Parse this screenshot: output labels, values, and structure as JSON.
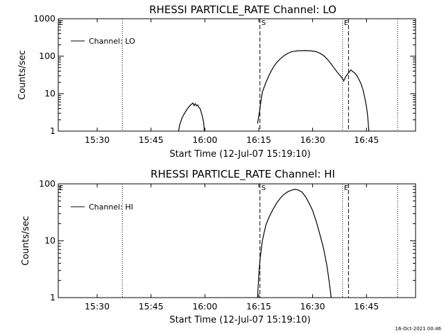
{
  "page": {
    "timestamp": "16-Oct-2021 00:46"
  },
  "chart_data": [
    {
      "type": "line",
      "title": "RHESSI PARTICLE_RATE Channel: LO",
      "xlabel": "Start Time (12-Jul-07 15:19:10)",
      "ylabel": "Counts/sec",
      "yscale": "log",
      "ylim": [
        1,
        1000
      ],
      "xlim": [
        "15:19:10",
        "16:58:40"
      ],
      "xtick_times": [
        "15:30",
        "15:45",
        "16:00",
        "16:15",
        "16:30",
        "16:45"
      ],
      "ytick_values": [
        1,
        10,
        100,
        1000
      ],
      "ytick_labels": [
        "1",
        "10",
        "100",
        "1000"
      ],
      "legend": {
        "position": "top-left",
        "entries": [
          "Channel: LO"
        ]
      },
      "grid": false,
      "markers": [
        {
          "label": "E",
          "style": "dotted",
          "times": [
            "15:37:00",
            "16:53:40"
          ]
        },
        {
          "label": "S",
          "style": "dashed",
          "times": [
            "16:15:20",
            "16:40:00"
          ]
        },
        {
          "label": "E",
          "style": "dotted",
          "times": [
            "16:38:20"
          ]
        }
      ],
      "series": [
        {
          "name": "Channel: LO",
          "segments": [
            [
              [
                "15:52:40",
                1
              ],
              [
                "15:53:00",
                1.5
              ],
              [
                "15:53:40",
                2.3
              ],
              [
                "15:54:30",
                3.2
              ],
              [
                "15:55:20",
                4.2
              ],
              [
                "15:56:00",
                5
              ],
              [
                "15:56:40",
                5.6
              ],
              [
                "15:57:00",
                4.8
              ],
              [
                "15:57:20",
                5.4
              ],
              [
                "15:57:40",
                4.7
              ],
              [
                "15:58:00",
                5
              ],
              [
                "15:58:20",
                4.3
              ],
              [
                "15:58:40",
                4
              ],
              [
                "15:59:10",
                2.8
              ],
              [
                "15:59:40",
                1.7
              ],
              [
                "15:59:50",
                1
              ]
            ],
            [
              [
                "16:14:40",
                1.6
              ],
              [
                "16:15:00",
                2.5
              ],
              [
                "16:15:20",
                4
              ],
              [
                "16:15:40",
                7
              ],
              [
                "16:16:00",
                11
              ],
              [
                "16:16:30",
                15
              ],
              [
                "16:17:00",
                20
              ],
              [
                "16:18:00",
                33
              ],
              [
                "16:19:00",
                50
              ],
              [
                "16:20:00",
                68
              ],
              [
                "16:21:00",
                85
              ],
              [
                "16:22:00",
                102
              ],
              [
                "16:23:00",
                118
              ],
              [
                "16:24:00",
                130
              ],
              [
                "16:25:00",
                136
              ],
              [
                "16:26:00",
                140
              ],
              [
                "16:27:00",
                140
              ],
              [
                "16:28:00",
                141
              ],
              [
                "16:29:00",
                140
              ],
              [
                "16:30:00",
                137
              ],
              [
                "16:31:00",
                132
              ],
              [
                "16:32:00",
                120
              ],
              [
                "16:33:00",
                105
              ],
              [
                "16:34:00",
                85
              ],
              [
                "16:35:00",
                65
              ],
              [
                "16:36:00",
                48
              ],
              [
                "16:37:00",
                36
              ],
              [
                "16:38:00",
                28
              ],
              [
                "16:38:40",
                22
              ],
              [
                "16:39:10",
                28
              ],
              [
                "16:39:40",
                33
              ],
              [
                "16:40:00",
                36
              ],
              [
                "16:40:40",
                43
              ],
              [
                "16:41:00",
                40
              ],
              [
                "16:41:40",
                36
              ],
              [
                "16:42:20",
                30
              ],
              [
                "16:43:00",
                23
              ],
              [
                "16:43:30",
                18
              ],
              [
                "16:44:00",
                13
              ],
              [
                "16:44:30",
                8
              ],
              [
                "16:45:00",
                4.5
              ],
              [
                "16:45:20",
                2.5
              ],
              [
                "16:45:40",
                1
              ]
            ]
          ]
        }
      ]
    },
    {
      "type": "line",
      "title": "RHESSI PARTICLE_RATE Channel: HI",
      "xlabel": "Start Time (12-Jul-07 15:19:10)",
      "ylabel": "Counts/sec",
      "yscale": "log",
      "ylim": [
        1,
        100
      ],
      "xlim": [
        "15:19:10",
        "16:58:40"
      ],
      "xtick_times": [
        "15:30",
        "15:45",
        "16:00",
        "16:15",
        "16:30",
        "16:45"
      ],
      "ytick_values": [
        1,
        10,
        100
      ],
      "ytick_labels": [
        "1",
        "10",
        "100"
      ],
      "legend": {
        "position": "top-left",
        "entries": [
          "Channel: HI"
        ]
      },
      "grid": false,
      "markers": [
        {
          "label": "E",
          "style": "dotted",
          "times": [
            "15:37:00",
            "16:53:40"
          ]
        },
        {
          "label": "S",
          "style": "dashed",
          "times": [
            "16:15:20",
            "16:40:00"
          ]
        },
        {
          "label": "E",
          "style": "dotted",
          "times": [
            "16:38:20"
          ]
        }
      ],
      "series": [
        {
          "name": "Channel: HI",
          "segments": [
            [
              [
                "16:14:40",
                1
              ],
              [
                "16:15:00",
                2.5
              ],
              [
                "16:15:20",
                4.6
              ],
              [
                "16:16:00",
                10
              ],
              [
                "16:16:30",
                14
              ],
              [
                "16:17:00",
                19
              ],
              [
                "16:18:00",
                27
              ],
              [
                "16:19:00",
                36
              ],
              [
                "16:20:00",
                46
              ],
              [
                "16:21:00",
                56
              ],
              [
                "16:22:00",
                65
              ],
              [
                "16:23:00",
                72
              ],
              [
                "16:24:00",
                77
              ],
              [
                "16:25:00",
                80
              ],
              [
                "16:26:00",
                78
              ],
              [
                "16:27:00",
                72
              ],
              [
                "16:28:00",
                60
              ],
              [
                "16:29:00",
                46
              ],
              [
                "16:30:00",
                34
              ],
              [
                "16:31:00",
                22
              ],
              [
                "16:32:00",
                13
              ],
              [
                "16:33:00",
                7.5
              ],
              [
                "16:34:00",
                3.6
              ],
              [
                "16:34:40",
                1.8
              ],
              [
                "16:35:10",
                1
              ]
            ]
          ]
        }
      ]
    }
  ]
}
